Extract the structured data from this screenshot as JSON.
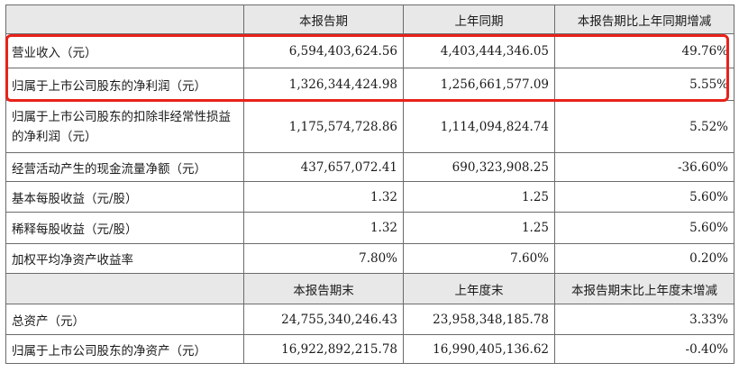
{
  "headers1": [
    "",
    "本报告期",
    "上年同期",
    "本报告期比上年同期增减"
  ],
  "rows1": [
    {
      "label": "营业收入（元）",
      "current": "6,594,403,624.56",
      "prior": "4,403,444,346.05",
      "change": "49.76%"
    },
    {
      "label": "归属于上市公司股东的净利润（元）",
      "current": "1,326,344,424.98",
      "prior": "1,256,661,577.09",
      "change": "5.55%"
    },
    {
      "label": "归属于上市公司股东的扣除非经常性损益的净利润（元）",
      "current": "1,175,574,728.86",
      "prior": "1,114,094,824.74",
      "change": "5.52%"
    },
    {
      "label": "经营活动产生的现金流量净额（元）",
      "current": "437,657,072.41",
      "prior": "690,323,908.25",
      "change": "-36.60%"
    },
    {
      "label": "基本每股收益（元/股）",
      "current": "1.32",
      "prior": "1.25",
      "change": "5.60%"
    },
    {
      "label": "稀释每股收益（元/股）",
      "current": "1.32",
      "prior": "1.25",
      "change": "5.60%"
    },
    {
      "label": "加权平均净资产收益率",
      "current": "7.80%",
      "prior": "7.60%",
      "change": "0.20%"
    }
  ],
  "headers2": [
    "",
    "本报告期末",
    "上年度末",
    "本报告期末比上年度末增减"
  ],
  "rows2": [
    {
      "label": "总资产（元）",
      "current": "24,755,340,246.43",
      "prior": "23,958,348,185.78",
      "change": "3.33%"
    },
    {
      "label": "归属于上市公司股东的净资产（元）",
      "current": "16,922,892,215.78",
      "prior": "16,990,405,136.62",
      "change": "-0.40%"
    }
  ],
  "highlight_color": "#e8221b"
}
